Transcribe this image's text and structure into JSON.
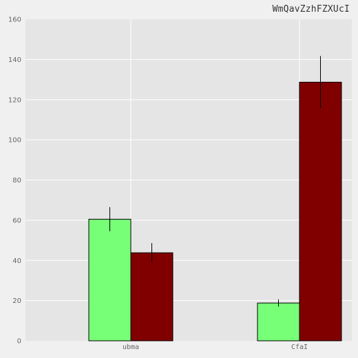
{
  "chart_data": {
    "type": "bar",
    "title": "WmQavZzhFZXUcI",
    "xlabel": "",
    "ylabel": "",
    "categories": [
      "ubma",
      "CfaI"
    ],
    "ylim": [
      0,
      160
    ],
    "yticks": [
      0,
      20,
      40,
      60,
      80,
      100,
      120,
      140,
      160
    ],
    "grid": true,
    "series": [
      {
        "color": "#77ff77",
        "values": [
          60.5,
          18.8
        ],
        "errors": [
          6.0,
          1.8
        ]
      },
      {
        "color": "#800000",
        "values": [
          43.8,
          128.7
        ],
        "errors": [
          4.8,
          13.0
        ]
      }
    ]
  }
}
